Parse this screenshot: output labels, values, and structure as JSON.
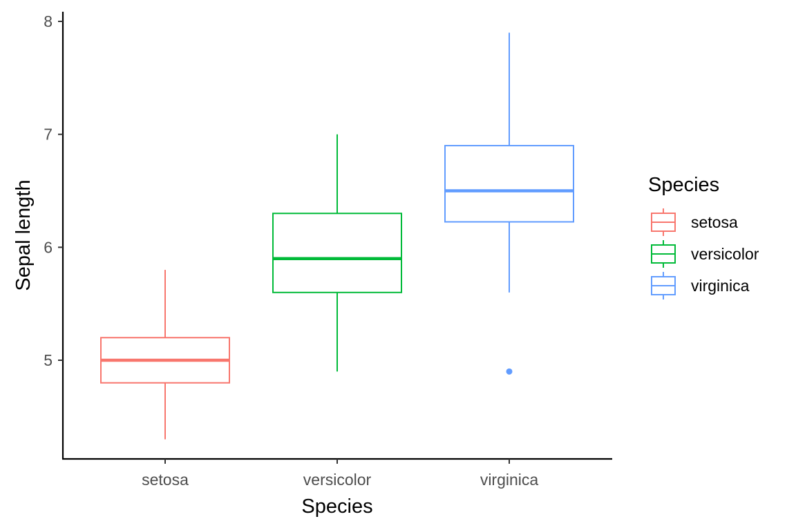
{
  "chart_data": {
    "type": "boxplot",
    "title": "",
    "xlabel": "Species",
    "ylabel": "Sepal length",
    "ylim": [
      4.2,
      8.1
    ],
    "yticks": [
      5,
      6,
      7,
      8
    ],
    "grid": false,
    "categories": [
      "setosa",
      "versicolor",
      "virginica"
    ],
    "boxes": [
      {
        "name": "setosa",
        "color": "#F8766D",
        "min": 4.3,
        "q1": 4.8,
        "median": 5.0,
        "q3": 5.2,
        "max": 5.8,
        "outliers": []
      },
      {
        "name": "versicolor",
        "color": "#00BA38",
        "min": 4.9,
        "q1": 5.6,
        "median": 5.9,
        "q3": 6.3,
        "max": 7.0,
        "outliers": []
      },
      {
        "name": "virginica",
        "color": "#619CFF",
        "min": 5.6,
        "q1": 6.225,
        "median": 6.5,
        "q3": 6.9,
        "max": 7.9,
        "outliers": [
          4.9
        ]
      }
    ],
    "legend": {
      "title": "Species",
      "position": "right",
      "entries": [
        {
          "label": "setosa",
          "color": "#F8766D"
        },
        {
          "label": "versicolor",
          "color": "#00BA38"
        },
        {
          "label": "virginica",
          "color": "#619CFF"
        }
      ]
    }
  }
}
